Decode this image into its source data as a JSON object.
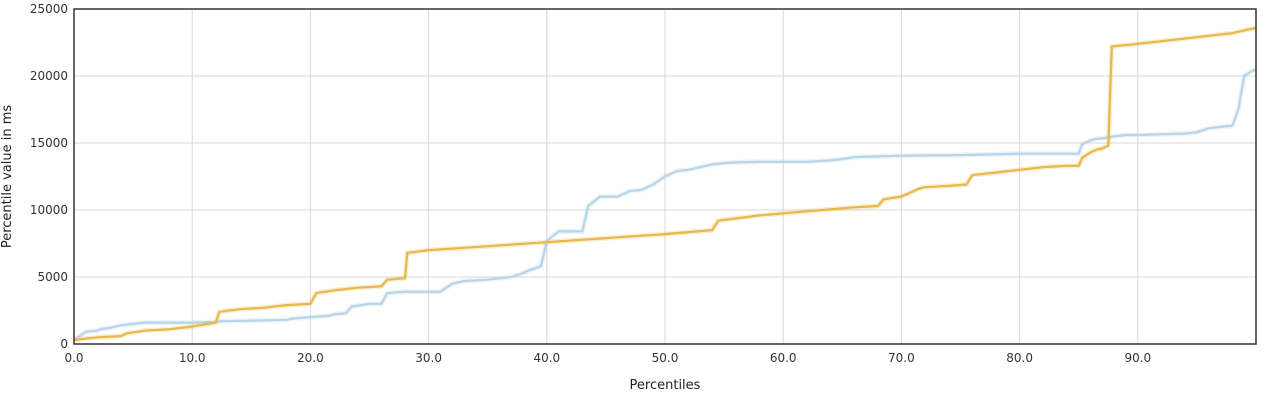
{
  "chart_data": {
    "type": "line",
    "title": "",
    "xlabel": "Percentiles",
    "ylabel": "Percentile value in ms",
    "xlim": [
      0,
      100
    ],
    "ylim": [
      0,
      25000
    ],
    "x_ticks": [
      0,
      10,
      20,
      30,
      40,
      50,
      60,
      70,
      80,
      90
    ],
    "x_tick_labels": [
      "0.0",
      "10.0",
      "20.0",
      "30.0",
      "40.0",
      "50.0",
      "60.0",
      "70.0",
      "80.0",
      "90.0"
    ],
    "y_ticks": [
      0,
      5000,
      10000,
      15000,
      20000,
      25000
    ],
    "y_tick_labels": [
      "0",
      "5000",
      "10000",
      "15000",
      "20000",
      "25000"
    ],
    "grid": true,
    "legend": "none",
    "series": [
      {
        "color": "#b8d4e8",
        "x": [
          0,
          0.5,
          1,
          2,
          2.2,
          3,
          4,
          5,
          6,
          8,
          10,
          12,
          12.5,
          15,
          18,
          18.5,
          20,
          21.5,
          22,
          23,
          23.5,
          25,
          26,
          26.5,
          28,
          29,
          30,
          31,
          31.5,
          32,
          33,
          35,
          36,
          37,
          38,
          38.5,
          39.5,
          40,
          41,
          42,
          43,
          43.5,
          44.5,
          46,
          47,
          48,
          49,
          50,
          51,
          52,
          53,
          54,
          55,
          56,
          58,
          60,
          62,
          64,
          65,
          66,
          68,
          70,
          75,
          80,
          85,
          85.3,
          86,
          86.5,
          87.5,
          88,
          89,
          90,
          92,
          94,
          95,
          96,
          97,
          98,
          98.5,
          99,
          99.5,
          100
        ],
        "y": [
          300,
          600,
          900,
          1000,
          1100,
          1200,
          1400,
          1500,
          1600,
          1600,
          1600,
          1650,
          1700,
          1750,
          1800,
          1900,
          2000,
          2100,
          2200,
          2300,
          2800,
          3000,
          3000,
          3800,
          3900,
          3900,
          3900,
          3900,
          4200,
          4500,
          4700,
          4800,
          4900,
          5000,
          5300,
          5500,
          5800,
          7700,
          8400,
          8400,
          8400,
          10300,
          11000,
          11000,
          11400,
          11500,
          11900,
          12500,
          12900,
          13000,
          13200,
          13400,
          13500,
          13550,
          13600,
          13600,
          13600,
          13700,
          13800,
          13950,
          14000,
          14050,
          14100,
          14200,
          14200,
          14900,
          15200,
          15300,
          15400,
          15500,
          15600,
          15600,
          15650,
          15700,
          15800,
          16100,
          16200,
          16300,
          17500,
          20000,
          20300,
          20500
        ]
      },
      {
        "color": "#e8b84a",
        "x": [
          0,
          2,
          4,
          4.5,
          6,
          8,
          10,
          12,
          12.3,
          14,
          16,
          18,
          20,
          20.5,
          22,
          24,
          26,
          26.5,
          28,
          28.2,
          30,
          35,
          40,
          45,
          50,
          54,
          54.5,
          58,
          62,
          66,
          68,
          68.5,
          70,
          71.5,
          72,
          74,
          75.5,
          76,
          78,
          80,
          82,
          84,
          85,
          85.3,
          86,
          86.5,
          87,
          87.5,
          87.8,
          90,
          92,
          94,
          96,
          98,
          99,
          100
        ],
        "y": [
          300,
          500,
          600,
          800,
          1000,
          1100,
          1300,
          1600,
          2400,
          2600,
          2700,
          2900,
          3000,
          3800,
          4000,
          4200,
          4300,
          4800,
          4900,
          6800,
          7000,
          7300,
          7600,
          7900,
          8200,
          8500,
          9200,
          9600,
          9900,
          10200,
          10300,
          10800,
          11000,
          11600,
          11700,
          11800,
          11900,
          12600,
          12800,
          13000,
          13200,
          13300,
          13300,
          13900,
          14300,
          14500,
          14600,
          14800,
          22200,
          22400,
          22600,
          22800,
          23000,
          23200,
          23400,
          23600
        ]
      }
    ]
  }
}
